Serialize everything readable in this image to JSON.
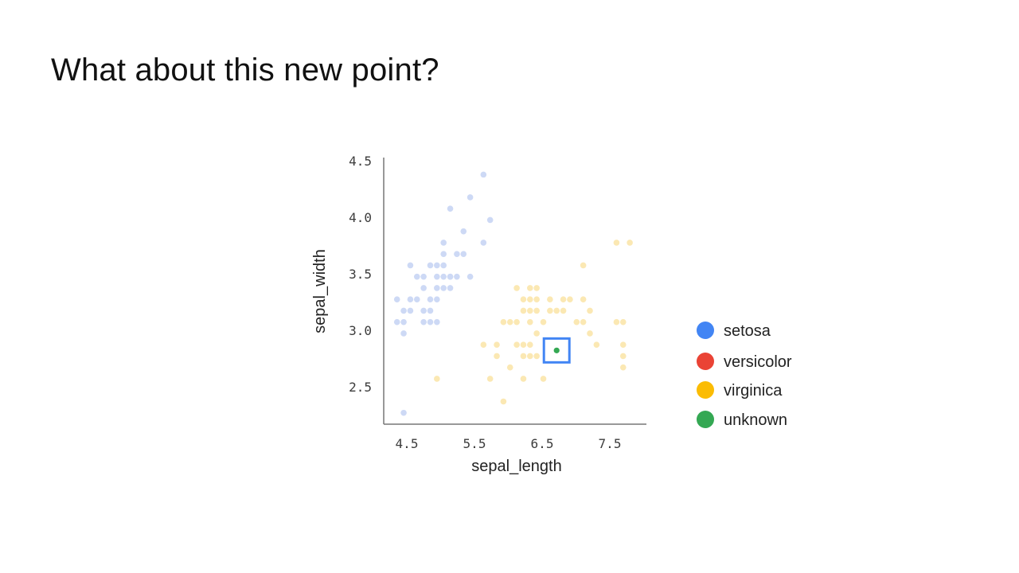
{
  "slide": {
    "title": "What about this new point?"
  },
  "colors": {
    "setosa": "#4285f4",
    "versicolor": "#ea4335",
    "virginica": "#fbbc04",
    "unknown": "#34a853",
    "highlight": "#4285f4",
    "faded_setosa": "#cdd9f5",
    "faded_virginica": "#fbe8b3"
  },
  "chart_data": {
    "type": "scatter",
    "xlabel": "sepal_length",
    "ylabel": "sepal_width",
    "xlim": [
      4.2,
      8.15
    ],
    "ylim": [
      2.2,
      4.55
    ],
    "xticks": [
      "4.5",
      "5.5",
      "6.5",
      "7.5"
    ],
    "yticks": [
      "2.5",
      "3.0",
      "3.5",
      "4.0",
      "4.5"
    ],
    "grid": false,
    "legend_position": "right",
    "highlighted_point": "unknown",
    "series": [
      {
        "name": "setosa",
        "points": [
          [
            5.2,
            4.1
          ],
          [
            5.4,
            3.9
          ],
          [
            5.5,
            4.2
          ],
          [
            5.7,
            4.4
          ],
          [
            5.8,
            4.0
          ],
          [
            5.7,
            3.8
          ],
          [
            5.1,
            3.8
          ],
          [
            5.1,
            3.7
          ],
          [
            5.3,
            3.7
          ],
          [
            5.4,
            3.7
          ],
          [
            4.6,
            3.6
          ],
          [
            4.9,
            3.6
          ],
          [
            5.0,
            3.6
          ],
          [
            5.1,
            3.6
          ],
          [
            5.2,
            3.5
          ],
          [
            4.7,
            3.5
          ],
          [
            4.8,
            3.5
          ],
          [
            5.0,
            3.5
          ],
          [
            5.1,
            3.5
          ],
          [
            5.2,
            3.5
          ],
          [
            5.3,
            3.5
          ],
          [
            5.5,
            3.5
          ],
          [
            4.8,
            3.4
          ],
          [
            5.0,
            3.4
          ],
          [
            5.1,
            3.4
          ],
          [
            5.2,
            3.4
          ],
          [
            4.4,
            3.3
          ],
          [
            4.6,
            3.3
          ],
          [
            4.7,
            3.3
          ],
          [
            4.9,
            3.3
          ],
          [
            5.0,
            3.3
          ],
          [
            4.5,
            3.2
          ],
          [
            4.6,
            3.2
          ],
          [
            4.8,
            3.2
          ],
          [
            4.9,
            3.2
          ],
          [
            4.4,
            3.1
          ],
          [
            4.5,
            3.1
          ],
          [
            4.8,
            3.1
          ],
          [
            4.9,
            3.1
          ],
          [
            5.0,
            3.1
          ],
          [
            4.5,
            3.0
          ],
          [
            4.5,
            2.3
          ]
        ]
      },
      {
        "name": "versicolor",
        "points": []
      },
      {
        "name": "virginica",
        "points": [
          [
            7.7,
            3.8
          ],
          [
            7.9,
            3.8
          ],
          [
            7.2,
            3.6
          ],
          [
            6.4,
            3.4
          ],
          [
            6.5,
            3.4
          ],
          [
            6.2,
            3.4
          ],
          [
            6.3,
            3.3
          ],
          [
            6.4,
            3.3
          ],
          [
            6.5,
            3.3
          ],
          [
            6.7,
            3.3
          ],
          [
            6.9,
            3.3
          ],
          [
            7.0,
            3.3
          ],
          [
            7.2,
            3.3
          ],
          [
            6.3,
            3.2
          ],
          [
            6.4,
            3.2
          ],
          [
            6.5,
            3.2
          ],
          [
            6.7,
            3.2
          ],
          [
            6.8,
            3.2
          ],
          [
            6.9,
            3.2
          ],
          [
            7.3,
            3.2
          ],
          [
            6.0,
            3.1
          ],
          [
            6.1,
            3.1
          ],
          [
            6.2,
            3.1
          ],
          [
            6.4,
            3.1
          ],
          [
            6.6,
            3.1
          ],
          [
            7.1,
            3.1
          ],
          [
            7.2,
            3.1
          ],
          [
            7.7,
            3.1
          ],
          [
            7.8,
            3.1
          ],
          [
            6.5,
            3.0
          ],
          [
            7.3,
            3.0
          ],
          [
            5.7,
            2.9
          ],
          [
            5.9,
            2.9
          ],
          [
            6.2,
            2.9
          ],
          [
            6.3,
            2.9
          ],
          [
            6.4,
            2.9
          ],
          [
            7.4,
            2.9
          ],
          [
            7.8,
            2.9
          ],
          [
            5.9,
            2.8
          ],
          [
            6.3,
            2.8
          ],
          [
            6.4,
            2.8
          ],
          [
            6.5,
            2.8
          ],
          [
            7.8,
            2.8
          ],
          [
            6.1,
            2.7
          ],
          [
            7.8,
            2.7
          ],
          [
            5.0,
            2.6
          ],
          [
            5.8,
            2.6
          ],
          [
            6.3,
            2.6
          ],
          [
            6.6,
            2.6
          ],
          [
            6.0,
            2.4
          ]
        ]
      },
      {
        "name": "unknown",
        "points": [
          [
            6.8,
            2.85
          ]
        ]
      }
    ]
  }
}
